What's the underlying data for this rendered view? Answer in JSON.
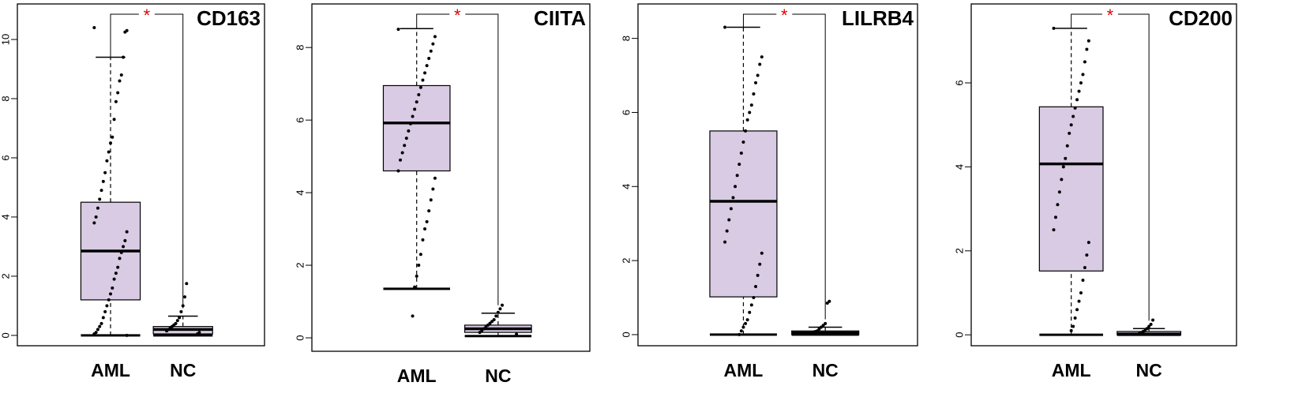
{
  "chart_data": [
    {
      "type": "box",
      "title": "CD163",
      "categories": [
        "AML",
        "NC"
      ],
      "annotation": "*",
      "annotation_color": "#e00000",
      "color": "#d8cbe3",
      "ylim": [
        -0.35,
        11.2
      ],
      "yticks": [
        0,
        2,
        4,
        6,
        8,
        10
      ],
      "boxes": [
        {
          "min": 0,
          "q1": 1.2,
          "median": 2.85,
          "q3": 4.5,
          "max": 9.4,
          "points": [
            10.4,
            10.3,
            10.25,
            9.4,
            8.8,
            8.6,
            8.2,
            7.9,
            7.3,
            6.7,
            6.5,
            6.2,
            5.9,
            5.5,
            5.2,
            4.9,
            4.6,
            4.3,
            4.0,
            3.8,
            3.5,
            3.2,
            3.0,
            2.8,
            2.6,
            2.3,
            2.1,
            1.9,
            1.6,
            1.4,
            1.2,
            1.0,
            0.8,
            0.6,
            0.4,
            0.3,
            0.2,
            0.1,
            0.05,
            0.0
          ]
        },
        {
          "min": 0,
          "q1": 0.05,
          "median": 0.2,
          "q3": 0.3,
          "max": 0.65,
          "points": [
            1.75,
            1.3,
            1.0,
            0.8,
            0.6,
            0.5,
            0.4,
            0.35,
            0.3,
            0.25,
            0.2,
            0.15,
            0.1,
            0.05
          ]
        }
      ]
    },
    {
      "type": "box",
      "title": "CIITA",
      "categories": [
        "AML",
        "NC"
      ],
      "annotation": "*",
      "annotation_color": "#e00000",
      "color": "#d8cbe3",
      "ylim": [
        -0.37,
        9.2
      ],
      "yticks": [
        0,
        2,
        4,
        6,
        8
      ],
      "boxes": [
        {
          "min": 1.35,
          "q1": 4.6,
          "median": 5.92,
          "q3": 6.95,
          "max": 8.52,
          "points": [
            8.5,
            8.3,
            8.1,
            7.9,
            7.7,
            7.5,
            7.3,
            7.1,
            6.9,
            6.7,
            6.5,
            6.3,
            6.1,
            5.9,
            5.7,
            5.5,
            5.3,
            5.1,
            4.9,
            4.6,
            4.4,
            4.1,
            3.8,
            3.5,
            3.2,
            3.0,
            2.7,
            2.3,
            2.0,
            1.7,
            1.4,
            0.6
          ]
        },
        {
          "min": 0.05,
          "q1": 0.15,
          "median": 0.25,
          "q3": 0.35,
          "max": 0.68,
          "points": [
            0.9,
            0.8,
            0.7,
            0.6,
            0.5,
            0.45,
            0.4,
            0.35,
            0.3,
            0.25,
            0.2,
            0.15,
            0.1
          ]
        }
      ]
    },
    {
      "type": "box",
      "title": "LILRB4",
      "categories": [
        "AML",
        "NC"
      ],
      "annotation": "*",
      "annotation_color": "#e00000",
      "color": "#d8cbe3",
      "ylim": [
        -0.3,
        8.93
      ],
      "yticks": [
        0,
        2,
        4,
        6,
        8
      ],
      "boxes": [
        {
          "min": 0,
          "q1": 1.02,
          "median": 3.6,
          "q3": 5.5,
          "max": 8.3,
          "points": [
            8.3,
            7.5,
            7.3,
            7.0,
            6.8,
            6.5,
            6.2,
            6.0,
            5.8,
            5.5,
            5.2,
            4.9,
            4.6,
            4.3,
            4.0,
            3.7,
            3.4,
            3.1,
            2.8,
            2.5,
            2.2,
            1.9,
            1.6,
            1.3,
            1.0,
            0.8,
            0.6,
            0.4,
            0.3,
            0.2,
            0.1,
            0.0
          ]
        },
        {
          "min": 0,
          "q1": 0,
          "median": 0.05,
          "q3": 0.1,
          "max": 0.2,
          "points": [
            0.9,
            0.85,
            0.3,
            0.25,
            0.2,
            0.15,
            0.1,
            0.08,
            0.05,
            0.03
          ]
        }
      ]
    },
    {
      "type": "box",
      "title": "CD200",
      "categories": [
        "AML",
        "NC"
      ],
      "annotation": "*",
      "annotation_color": "#e00000",
      "color": "#d8cbe3",
      "ylim": [
        -0.26,
        7.88
      ],
      "yticks": [
        0,
        2,
        4,
        6
      ],
      "boxes": [
        {
          "min": 0,
          "q1": 1.52,
          "median": 4.07,
          "q3": 5.43,
          "max": 7.3,
          "points": [
            7.3,
            7.0,
            6.8,
            6.5,
            6.2,
            6.0,
            5.8,
            5.6,
            5.4,
            5.2,
            5.0,
            4.8,
            4.5,
            4.2,
            4.0,
            3.7,
            3.4,
            3.1,
            2.8,
            2.5,
            2.2,
            1.9,
            1.6,
            1.3,
            1.0,
            0.8,
            0.6,
            0.4,
            0.2,
            0.1
          ]
        },
        {
          "min": 0,
          "q1": 0,
          "median": 0.02,
          "q3": 0.08,
          "max": 0.15,
          "points": [
            0.35,
            0.25,
            0.2,
            0.15,
            0.1,
            0.08,
            0.05,
            0.03
          ]
        }
      ]
    }
  ]
}
